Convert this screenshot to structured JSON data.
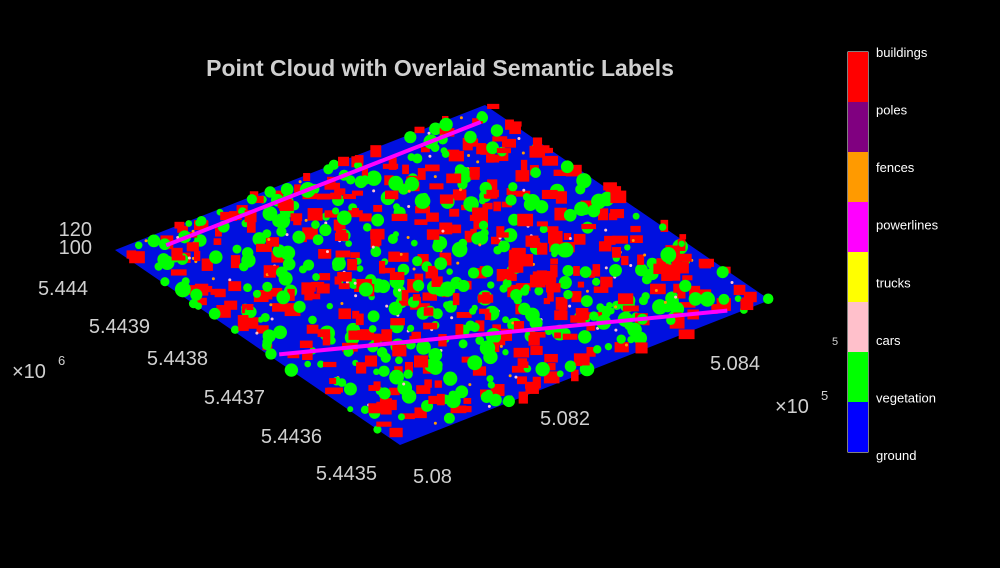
{
  "title": "Point Cloud with Overlaid Semantic Labels",
  "axes": {
    "z_ticks": [
      "120",
      "100"
    ],
    "y_ticks": [
      "5.444",
      "5.4439",
      "5.4438",
      "5.4437",
      "5.4436",
      "5.4435"
    ],
    "y_multiplier": {
      "base": "×10",
      "exponent": "6"
    },
    "x_ticks": [
      "5.08",
      "5.082",
      "5.084"
    ],
    "x_multiplier": {
      "base": "×10",
      "exponent": "5"
    }
  },
  "colorbar": {
    "stray_exponent": "5",
    "classes": [
      {
        "label": "buildings",
        "color": "#ff0000"
      },
      {
        "label": "poles",
        "color": "#800080"
      },
      {
        "label": "fences",
        "color": "#ff9a00"
      },
      {
        "label": "powerlines",
        "color": "#ff00ff"
      },
      {
        "label": "trucks",
        "color": "#ffff00"
      },
      {
        "label": "cars",
        "color": "#ffc0cb"
      },
      {
        "label": "vegetation",
        "color": "#00ff00"
      },
      {
        "label": "ground",
        "color": "#0000ff"
      }
    ]
  }
}
